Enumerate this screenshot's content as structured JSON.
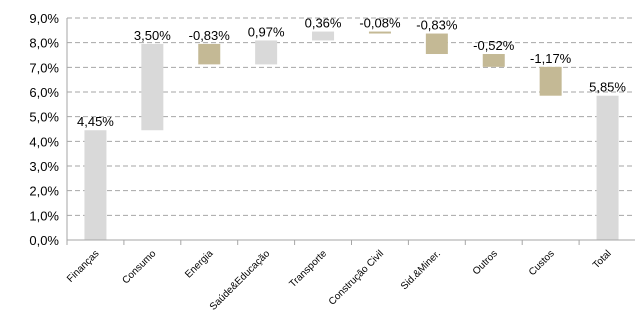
{
  "chart_data": {
    "type": "bar",
    "subtype": "waterfall",
    "title": "",
    "xlabel": "",
    "ylabel": "",
    "ylim": [
      0,
      9
    ],
    "yticks": [
      0,
      1,
      2,
      3,
      4,
      5,
      6,
      7,
      8,
      9
    ],
    "ytick_labels": [
      "0,0%",
      "1,0%",
      "2,0%",
      "3,0%",
      "4,0%",
      "5,0%",
      "6,0%",
      "7,0%",
      "8,0%",
      "9,0%"
    ],
    "grid": true,
    "legend": "none",
    "categories": [
      "Finanças",
      "Consumo",
      "Energia",
      "Saúde&Educação",
      "Transporte",
      "Construção Civil",
      "Sid.&Miner.",
      "Outros",
      "Custos",
      "Total"
    ],
    "values": [
      4.45,
      3.5,
      -0.83,
      0.97,
      0.36,
      -0.08,
      -0.83,
      -0.52,
      -1.17,
      5.85
    ],
    "value_labels": [
      "4,45%",
      "3,50%",
      "-0,83%",
      "0,97%",
      "0,36%",
      "-0,08%",
      "-0,83%",
      "-0,52%",
      "-1,17%",
      "5,85%"
    ],
    "colors": {
      "positive": "#d9d9d9",
      "negative": "#c4b995",
      "total": "#d9d9d9"
    }
  }
}
